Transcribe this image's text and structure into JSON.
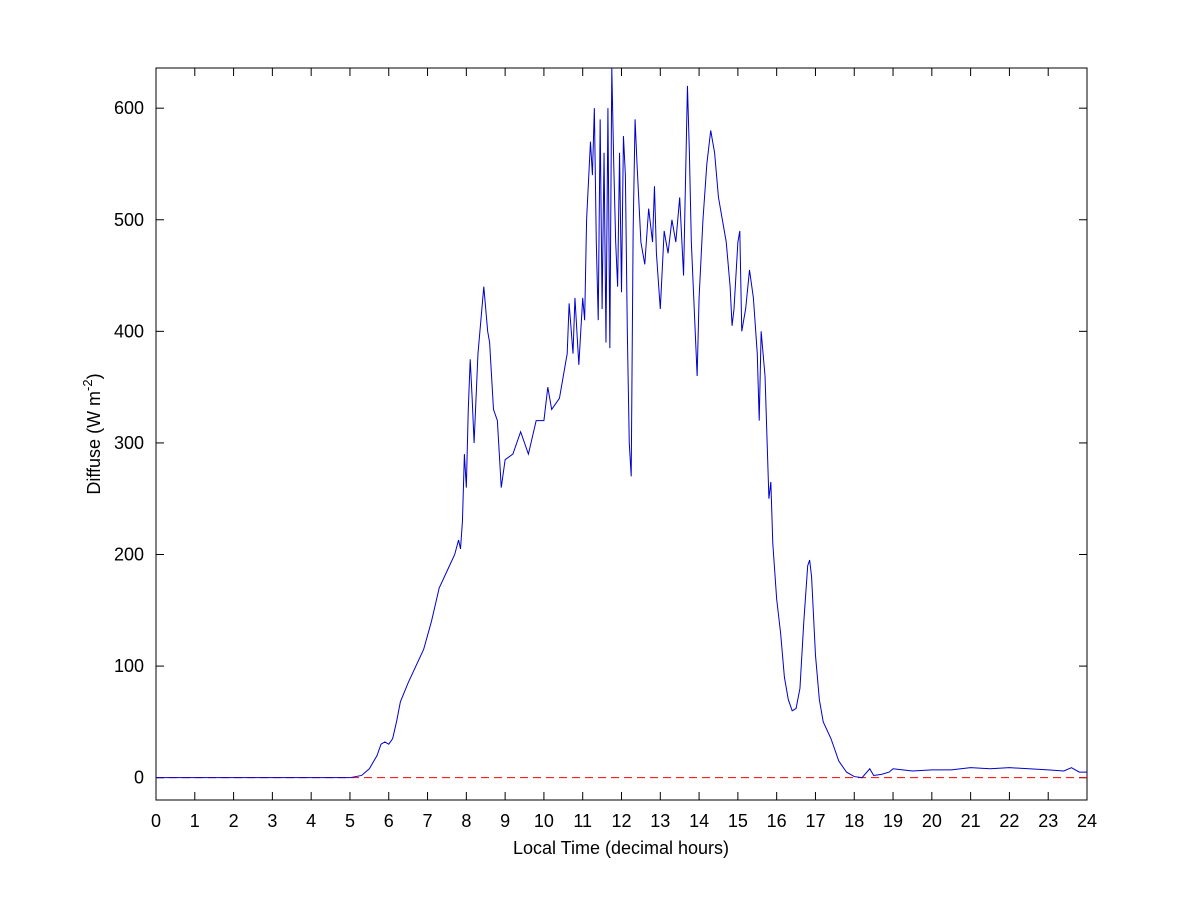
{
  "chart_data": {
    "type": "line",
    "xlabel": "Local Time (decimal hours)",
    "ylabel": {
      "text": "Diffuse (W m",
      "sup": "-2",
      "tail": ")"
    },
    "xlim": [
      0,
      24
    ],
    "xticks": [
      0,
      1,
      2,
      3,
      4,
      5,
      6,
      7,
      8,
      9,
      10,
      11,
      12,
      13,
      14,
      15,
      16,
      17,
      18,
      19,
      20,
      21,
      22,
      23,
      24
    ],
    "ylim": [
      -20,
      636
    ],
    "yticks": [
      0,
      100,
      200,
      300,
      400,
      500,
      600
    ],
    "grid": false,
    "x": [
      0,
      5.0,
      5.3,
      5.5,
      5.7,
      5.8,
      5.9,
      6.0,
      6.1,
      6.2,
      6.3,
      6.5,
      6.7,
      6.9,
      7.1,
      7.3,
      7.5,
      7.7,
      7.8,
      7.85,
      7.9,
      7.95,
      8.0,
      8.05,
      8.1,
      8.15,
      8.2,
      8.3,
      8.4,
      8.45,
      8.55,
      8.6,
      8.7,
      8.8,
      8.9,
      9.0,
      9.2,
      9.4,
      9.6,
      9.8,
      10.0,
      10.1,
      10.2,
      10.4,
      10.5,
      10.6,
      10.65,
      10.75,
      10.8,
      10.9,
      11.0,
      11.05,
      11.1,
      11.2,
      11.25,
      11.3,
      11.35,
      11.4,
      11.45,
      11.5,
      11.55,
      11.6,
      11.65,
      11.7,
      11.75,
      11.8,
      11.85,
      11.9,
      11.95,
      12.0,
      12.05,
      12.1,
      12.15,
      12.2,
      12.25,
      12.3,
      12.35,
      12.4,
      12.5,
      12.6,
      12.7,
      12.8,
      12.85,
      12.9,
      13.0,
      13.1,
      13.2,
      13.3,
      13.4,
      13.5,
      13.6,
      13.7,
      13.75,
      13.8,
      13.9,
      13.95,
      14.0,
      14.1,
      14.2,
      14.3,
      14.4,
      14.5,
      14.6,
      14.7,
      14.8,
      14.85,
      14.9,
      15.0,
      15.05,
      15.1,
      15.2,
      15.3,
      15.4,
      15.5,
      15.55,
      15.6,
      15.7,
      15.8,
      15.85,
      15.9,
      16.0,
      16.1,
      16.2,
      16.3,
      16.4,
      16.5,
      16.6,
      16.7,
      16.8,
      16.85,
      16.9,
      17.0,
      17.1,
      17.2,
      17.4,
      17.6,
      17.8,
      18.0,
      18.2,
      18.4,
      18.5,
      18.7,
      18.9,
      19.0,
      19.5,
      20.0,
      20.5,
      21.0,
      21.5,
      22.0,
      22.5,
      23.0,
      23.4,
      23.6,
      23.8,
      24.0
    ],
    "series": [
      {
        "color": "#0000cc",
        "values": [
          0,
          0,
          2,
          8,
          20,
          30,
          32,
          30,
          35,
          50,
          68,
          85,
          100,
          115,
          140,
          170,
          185,
          200,
          213,
          205,
          230,
          290,
          260,
          330,
          375,
          340,
          300,
          380,
          420,
          440,
          400,
          390,
          330,
          320,
          260,
          285,
          290,
          310,
          290,
          320,
          320,
          350,
          330,
          340,
          360,
          380,
          425,
          380,
          430,
          370,
          430,
          410,
          500,
          570,
          540,
          600,
          480,
          410,
          590,
          420,
          560,
          390,
          600,
          385,
          636,
          550,
          480,
          440,
          560,
          435,
          575,
          540,
          400,
          300,
          270,
          490,
          590,
          550,
          480,
          460,
          510,
          480,
          530,
          470,
          420,
          490,
          470,
          500,
          480,
          520,
          450,
          620,
          560,
          480,
          400,
          360,
          430,
          500,
          550,
          580,
          560,
          520,
          500,
          480,
          440,
          405,
          420,
          480,
          490,
          400,
          420,
          455,
          430,
          380,
          320,
          400,
          360,
          250,
          265,
          210,
          160,
          130,
          90,
          70,
          60,
          62,
          80,
          140,
          190,
          195,
          180,
          110,
          70,
          50,
          35,
          15,
          5,
          1,
          0,
          8,
          2,
          3,
          5,
          8,
          6,
          7,
          7,
          9,
          8,
          9,
          8,
          7,
          6,
          9,
          5,
          5
        ]
      }
    ],
    "reference_line": {
      "y": 0,
      "color": "#ff0000",
      "style": "dashed"
    }
  }
}
